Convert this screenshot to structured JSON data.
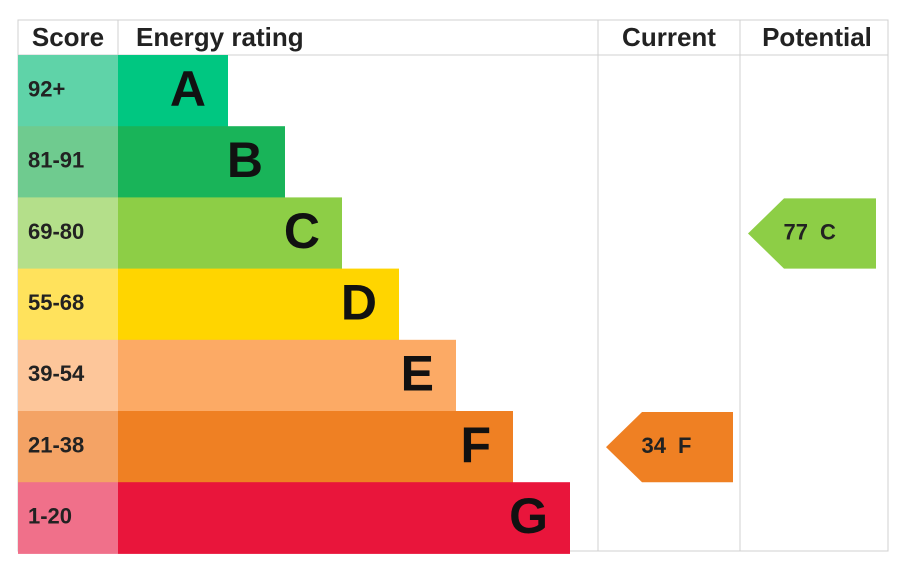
{
  "header": {
    "score": "Score",
    "energy_rating": "Energy rating",
    "current": "Current",
    "potential": "Potential"
  },
  "bands": [
    {
      "score": "92+",
      "letter": "A",
      "color": "#00c781",
      "light": "#5fd3a8"
    },
    {
      "score": "81-91",
      "letter": "B",
      "color": "#19b459",
      "light": "#6fcb8f"
    },
    {
      "score": "69-80",
      "letter": "C",
      "color": "#8dce46",
      "light": "#b4df8a"
    },
    {
      "score": "55-68",
      "letter": "D",
      "color": "#ffd500",
      "light": "#ffe25c"
    },
    {
      "score": "39-54",
      "letter": "E",
      "color": "#fcaa65",
      "light": "#fdc69a"
    },
    {
      "score": "21-38",
      "letter": "F",
      "color": "#ef8023",
      "light": "#f4a365"
    },
    {
      "score": "1-20",
      "letter": "G",
      "color": "#e9153b",
      "light": "#f0708a"
    }
  ],
  "current": {
    "score": 34,
    "letter": "F"
  },
  "potential": {
    "score": 77,
    "letter": "C"
  }
}
